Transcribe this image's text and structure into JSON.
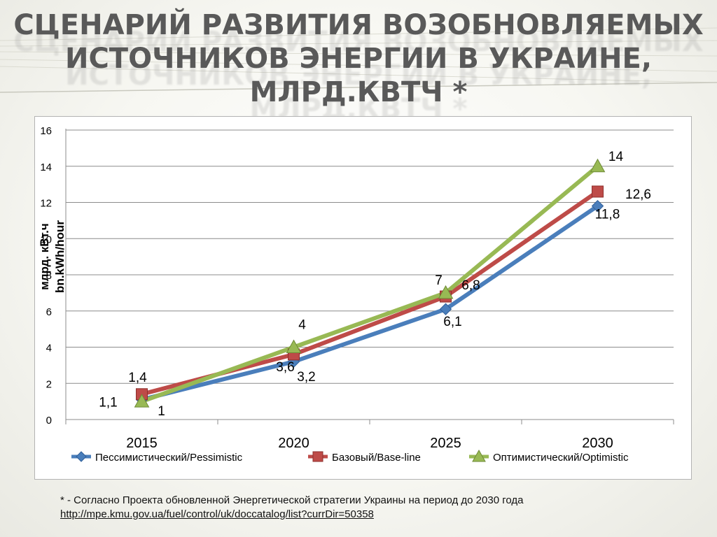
{
  "slide": {
    "title_line1": "Сценарий развития возобновляемых",
    "title_line2": "источников энергии в Украине, млрд.кВтч *",
    "footnote_text": "* - Согласно  Проекта обновленной Энергетической стратегии Украины на период до 2030 года",
    "footnote_link": "http://mpe.kmu.gov.ua/fuel/control/uk/doccatalog/list?currDir=50358"
  },
  "chart_data": {
    "type": "line",
    "title": "",
    "ylabel_line1": "млрд. кВт.ч",
    "ylabel_line2": "bn.kWh/hour",
    "xlabel": "",
    "categories": [
      "2015",
      "2020",
      "2025",
      "2030"
    ],
    "ylim": [
      0,
      16
    ],
    "yticks": [
      0,
      2,
      4,
      6,
      8,
      10,
      12,
      14,
      16
    ],
    "grid": true,
    "legend_position": "bottom",
    "series": [
      {
        "name": "Пессимистический/Pessimistic",
        "values": [
          1.1,
          3.2,
          6.1,
          11.8
        ],
        "labels": [
          "1,1",
          "3,2",
          "6,1",
          "11,8"
        ],
        "color": "#4a7ebb",
        "marker": "diamond"
      },
      {
        "name": "Базовый/Base-line",
        "values": [
          1.4,
          3.6,
          6.8,
          12.6
        ],
        "labels": [
          "1,4",
          "3,6",
          "6,8",
          "12,6"
        ],
        "color": "#be4b48",
        "marker": "square"
      },
      {
        "name": "Оптимистический/Optimistic",
        "values": [
          1,
          4,
          7,
          14
        ],
        "labels": [
          "1",
          "4",
          "7",
          "14"
        ],
        "color": "#98b954",
        "marker": "triangle"
      }
    ]
  }
}
